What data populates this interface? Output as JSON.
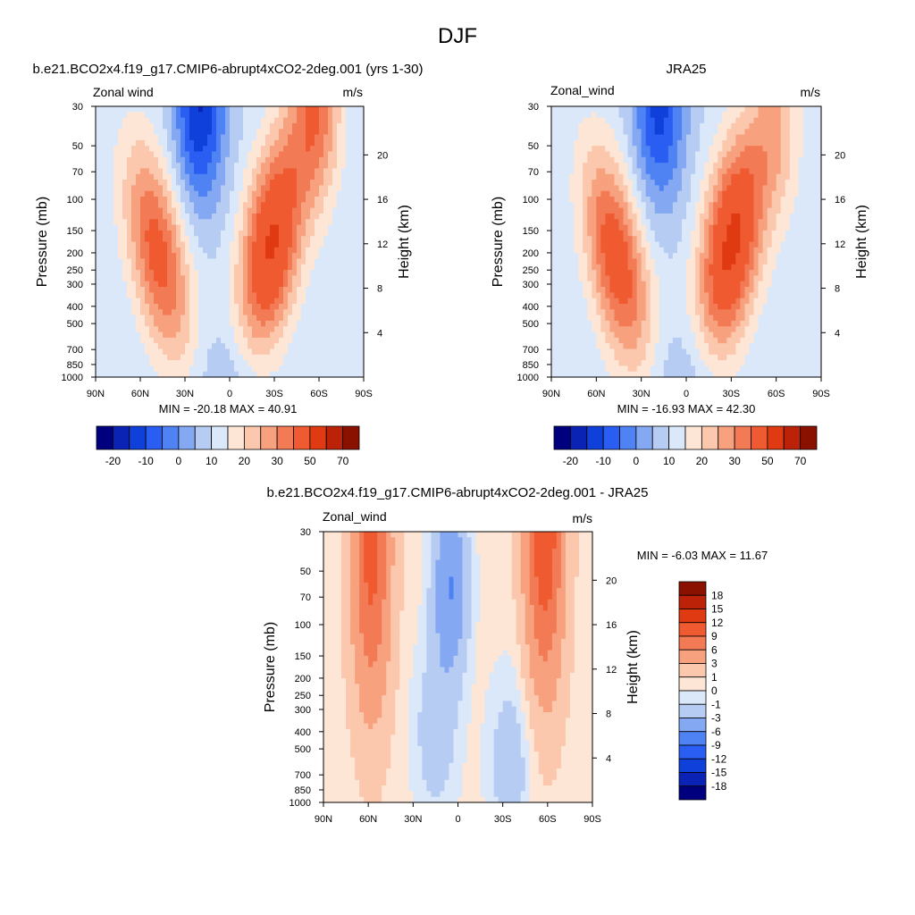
{
  "figure": {
    "title": "DJF"
  },
  "chart_data": [
    {
      "type": "heatmap",
      "panel_title": "b.e21.BCO2x4.f19_g17.CMIP6-abrupt4xCO2-2deg.001 (yrs 1-30)",
      "left_label": "Zonal wind",
      "right_label": "m/s",
      "ylabel": "Pressure (mb)",
      "ylabel_right": "Height (km)",
      "x_ticks": [
        "90N",
        "60N",
        "30N",
        "0",
        "30S",
        "60S",
        "90S"
      ],
      "y_ticks": [
        "30",
        "50",
        "70",
        "100",
        "150",
        "200",
        "250",
        "300",
        "400",
        "500",
        "700",
        "850",
        "1000"
      ],
      "y_ticks_right": [
        "20",
        "16",
        "12",
        "8",
        "4"
      ],
      "stats": "MIN = -20.18  MAX = 40.91",
      "colorbar_labels": [
        "-20",
        "-10",
        "0",
        "10",
        "20",
        "30",
        "50",
        "70"
      ],
      "jets": [
        {
          "lat": -28,
          "p": 180,
          "value": 40.91
        },
        {
          "lat": 48,
          "p": 200,
          "value": 33
        },
        {
          "lat": 20,
          "p": 30,
          "value": -20.18
        },
        {
          "lat": -58,
          "p": 30,
          "value": 28
        }
      ]
    },
    {
      "type": "heatmap",
      "panel_title": "JRA25",
      "left_label": "Zonal_wind",
      "right_label": "m/s",
      "ylabel": "Pressure (mb)",
      "ylabel_right": "Height (km)",
      "x_ticks": [
        "90N",
        "60N",
        "30N",
        "0",
        "30S",
        "60S",
        "90S"
      ],
      "y_ticks": [
        "30",
        "50",
        "70",
        "100",
        "150",
        "200",
        "250",
        "300",
        "400",
        "500",
        "700",
        "850",
        "1000"
      ],
      "y_ticks_right": [
        "20",
        "16",
        "12",
        "8",
        "4"
      ],
      "stats": "MIN = -16.93  MAX = 42.30",
      "colorbar_labels": [
        "-20",
        "-10",
        "0",
        "10",
        "20",
        "30",
        "50",
        "70"
      ],
      "jets": [
        {
          "lat": -30,
          "p": 180,
          "value": 42.3
        },
        {
          "lat": 47,
          "p": 220,
          "value": 35
        },
        {
          "lat": 18,
          "p": 30,
          "value": -16.93
        },
        {
          "lat": -60,
          "p": 40,
          "value": 18
        }
      ]
    },
    {
      "type": "heatmap",
      "panel_title": "b.e21.BCO2x4.f19_g17.CMIP6-abrupt4xCO2-2deg.001 - JRA25",
      "left_label": "Zonal_wind",
      "right_label": "m/s",
      "ylabel": "Pressure (mb)",
      "ylabel_right": "Height (km)",
      "x_ticks": [
        "90N",
        "60N",
        "30N",
        "0",
        "30S",
        "60S",
        "90S"
      ],
      "y_ticks": [
        "30",
        "50",
        "70",
        "100",
        "150",
        "200",
        "250",
        "300",
        "400",
        "500",
        "700",
        "850",
        "1000"
      ],
      "y_ticks_right": [
        "20",
        "16",
        "12",
        "8",
        "4"
      ],
      "stats": "MIN =  -6.03  MAX =  11.67",
      "colorbar_labels": [
        "18",
        "15",
        "12",
        "9",
        "6",
        "3",
        "1",
        "0",
        "-1",
        "-3",
        "-6",
        "-9",
        "-12",
        "-15",
        "-18"
      ],
      "jets": [
        {
          "lat": -58,
          "p": 30,
          "value": 11.67
        },
        {
          "lat": 58,
          "p": 40,
          "value": 10
        },
        {
          "lat": 5,
          "p": 60,
          "value": -6.03
        }
      ]
    }
  ],
  "colors": {
    "model_obs_colorbar": [
      "#00007f",
      "#0a23b4",
      "#0f40d9",
      "#2a5ef2",
      "#4f82f2",
      "#84a8f2",
      "#b6ccf2",
      "#dbe8fa",
      "#fde6d6",
      "#fbc7ad",
      "#f7a17e",
      "#f27a55",
      "#ef5a30",
      "#e03a12",
      "#bb2208",
      "#8a1000"
    ],
    "diff_colorbar": [
      "#8a1000",
      "#bb2208",
      "#e03a12",
      "#ef5a30",
      "#f27a55",
      "#f7a17e",
      "#fbc7ad",
      "#fde6d6",
      "#dbe8fa",
      "#b6ccf2",
      "#84a8f2",
      "#4f82f2",
      "#2a5ef2",
      "#0f40d9",
      "#0a23b4",
      "#00007f"
    ]
  }
}
